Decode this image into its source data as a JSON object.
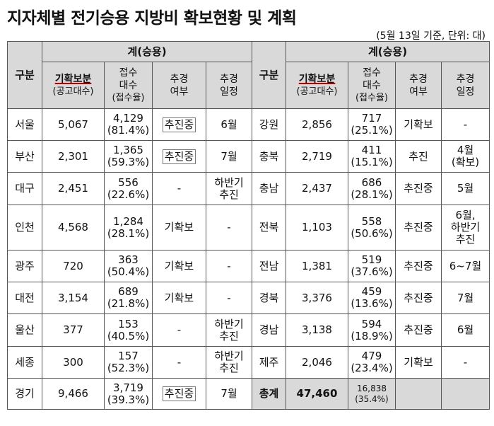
{
  "title": "지자체별 전기승용 지방비 확보현황 및 계획",
  "note": "(5월 13일 기준, 단위: 대)",
  "header": {
    "region": "구분",
    "group": "계(승용)",
    "budget_main": "기확보분",
    "budget_sub": "(공고대수)",
    "applied_l1": "접수",
    "applied_l2": "대수",
    "applied_sub": "(접수율)",
    "supp_l1": "추경",
    "supp_l2": "여부",
    "sched_l1": "추경",
    "sched_l2": "일정"
  },
  "left_rows": [
    {
      "region": "서울",
      "budget": "5,067",
      "applied": "4,129",
      "rate": "(81.4%)",
      "supp": "추진중",
      "sched1": "6월",
      "sched2": ""
    },
    {
      "region": "부산",
      "budget": "2,301",
      "applied": "1,365",
      "rate": "(59.3%)",
      "supp": "추진중",
      "sched1": "7월",
      "sched2": ""
    },
    {
      "region": "대구",
      "budget": "2,451",
      "applied": "556",
      "rate": "(22.6%)",
      "supp": "-",
      "sched1": "하반기",
      "sched2": "추진"
    },
    {
      "region": "인천",
      "budget": "4,568",
      "applied": "1,284",
      "rate": "(28.1%)",
      "supp": "기확보",
      "sched1": "-",
      "sched2": ""
    },
    {
      "region": "광주",
      "budget": "720",
      "applied": "363",
      "rate": "(50.4%)",
      "supp": "기확보",
      "sched1": "-",
      "sched2": ""
    },
    {
      "region": "대전",
      "budget": "3,154",
      "applied": "689",
      "rate": "(21.8%)",
      "supp": "기확보",
      "sched1": "-",
      "sched2": ""
    },
    {
      "region": "울산",
      "budget": "377",
      "applied": "153",
      "rate": "(40.5%)",
      "supp": "-",
      "sched1": "하반기",
      "sched2": "추진"
    },
    {
      "region": "세종",
      "budget": "300",
      "applied": "157",
      "rate": "(52.3%)",
      "supp": "-",
      "sched1": "하반기",
      "sched2": "추진"
    },
    {
      "region": "경기",
      "budget": "9,466",
      "applied": "3,719",
      "rate": "(39.3%)",
      "supp": "추진중",
      "sched1": "7월",
      "sched2": ""
    }
  ],
  "right_rows": [
    {
      "region": "강원",
      "budget": "2,856",
      "applied": "717",
      "rate": "(25.1%)",
      "supp": "기확보",
      "sched1": "-",
      "sched2": "",
      "sched3": ""
    },
    {
      "region": "충북",
      "budget": "2,719",
      "applied": "411",
      "rate": "(15.1%)",
      "supp": "추진",
      "sched1": "4월",
      "sched2": "(확보)",
      "sched3": ""
    },
    {
      "region": "충남",
      "budget": "2,437",
      "applied": "686",
      "rate": "(28.1%)",
      "supp": "추진중",
      "sched1": "5월",
      "sched2": "",
      "sched3": ""
    },
    {
      "region": "전북",
      "budget": "1,103",
      "applied": "558",
      "rate": "(50.6%)",
      "supp": "추진중",
      "sched1": "6월,",
      "sched2": "하반기",
      "sched3": "추진"
    },
    {
      "region": "전남",
      "budget": "1,381",
      "applied": "519",
      "rate": "(37.6%)",
      "supp": "추진중",
      "sched1": "6~7월",
      "sched2": "",
      "sched3": ""
    },
    {
      "region": "경북",
      "budget": "3,376",
      "applied": "459",
      "rate": "(13.6%)",
      "supp": "추진중",
      "sched1": "7월",
      "sched2": "",
      "sched3": ""
    },
    {
      "region": "경남",
      "budget": "3,138",
      "applied": "594",
      "rate": "(18.9%)",
      "supp": "추진중",
      "sched1": "6월",
      "sched2": "",
      "sched3": ""
    },
    {
      "region": "제주",
      "budget": "2,046",
      "applied": "479",
      "rate": "(23.4%)",
      "supp": "기확보",
      "sched1": "-",
      "sched2": "",
      "sched3": ""
    }
  ],
  "total": {
    "label": "총계",
    "budget": "47,460",
    "applied": "16,838",
    "rate": "(35.4%)"
  }
}
